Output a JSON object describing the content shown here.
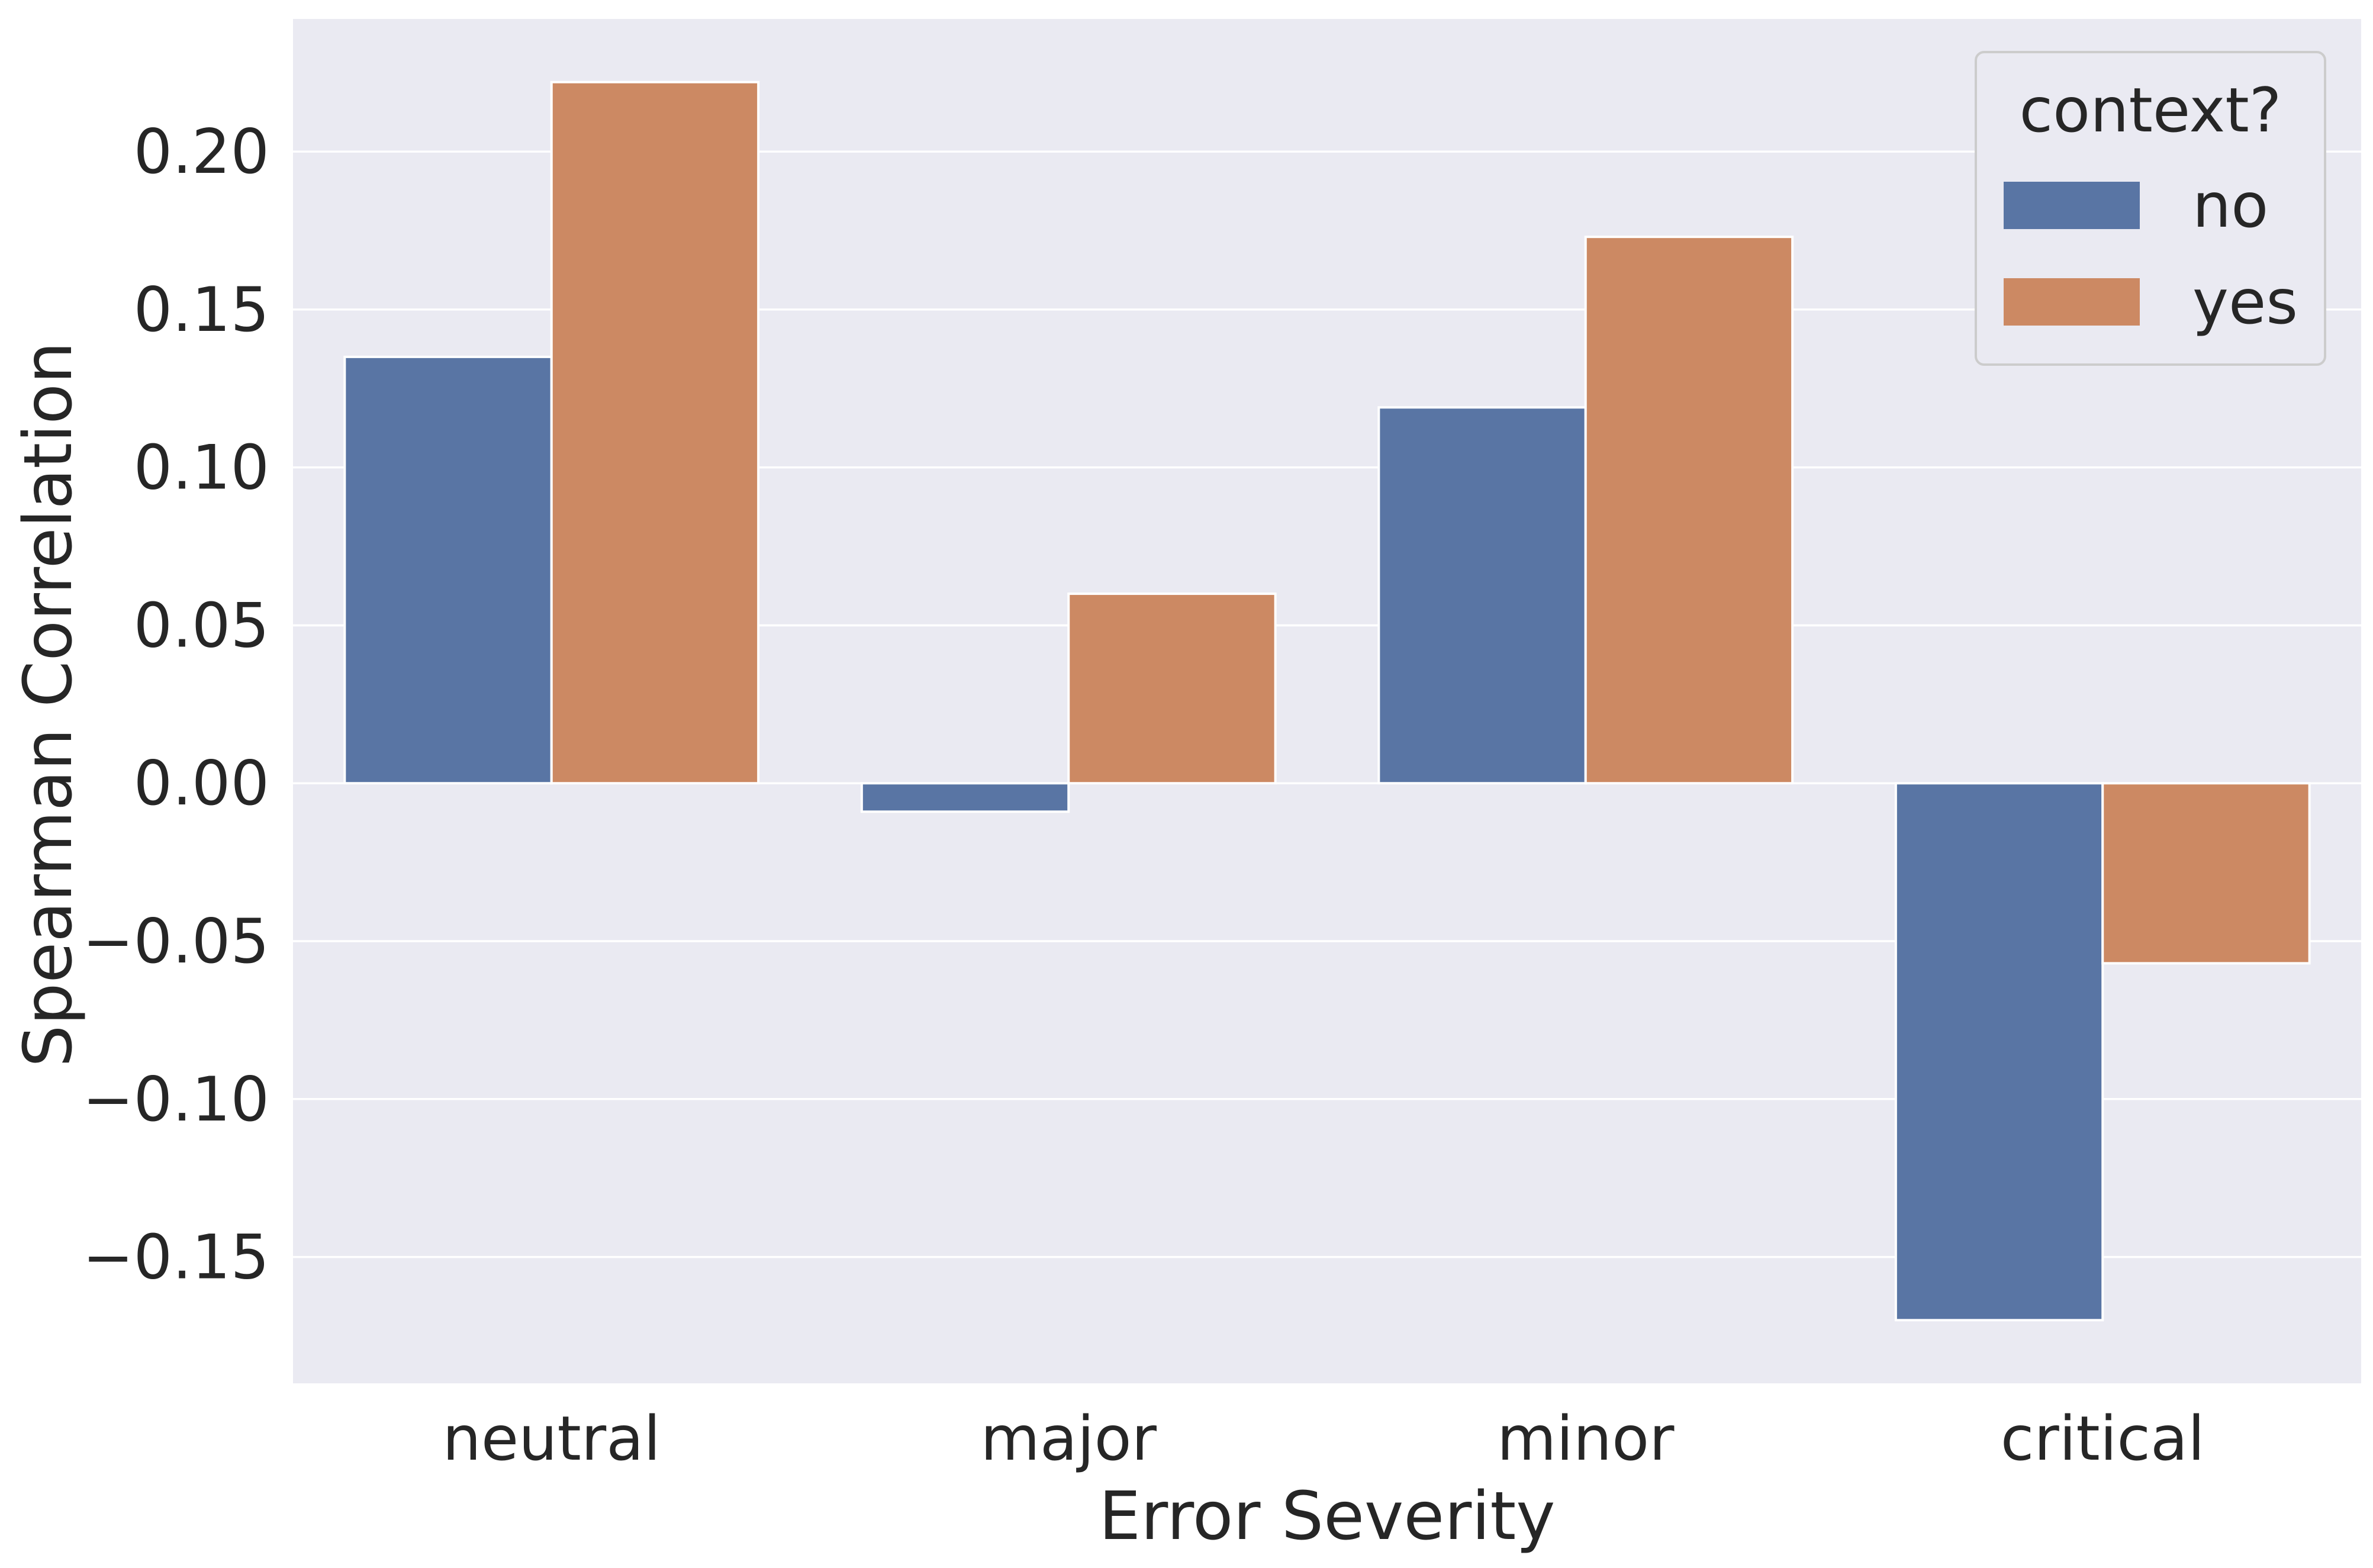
{
  "chart_data": {
    "type": "bar",
    "title": "",
    "xlabel": "Error Severity",
    "ylabel": "Spearman Correlation",
    "categories": [
      "neutral",
      "major",
      "minor",
      "critical"
    ],
    "series": [
      {
        "name": "no",
        "color": "#5975a4",
        "values": [
          0.135,
          -0.009,
          0.119,
          -0.17
        ]
      },
      {
        "name": "yes",
        "color": "#cc8963",
        "values": [
          0.222,
          0.06,
          0.173,
          -0.057
        ]
      }
    ],
    "ylim": [
      -0.19,
      0.242
    ],
    "yticks": [
      -0.15,
      -0.1,
      -0.05,
      0.0,
      0.05,
      0.1,
      0.15,
      0.2
    ],
    "ytick_labels": [
      "−0.15",
      "−0.10",
      "−0.05",
      "0.00",
      "0.05",
      "0.10",
      "0.15",
      "0.20"
    ],
    "grid": true,
    "legend": {
      "title": "context?",
      "position": "top-right"
    },
    "colors": {
      "plot_background": "#eaeaf2",
      "grid": "#ffffff",
      "text": "#262626"
    }
  }
}
